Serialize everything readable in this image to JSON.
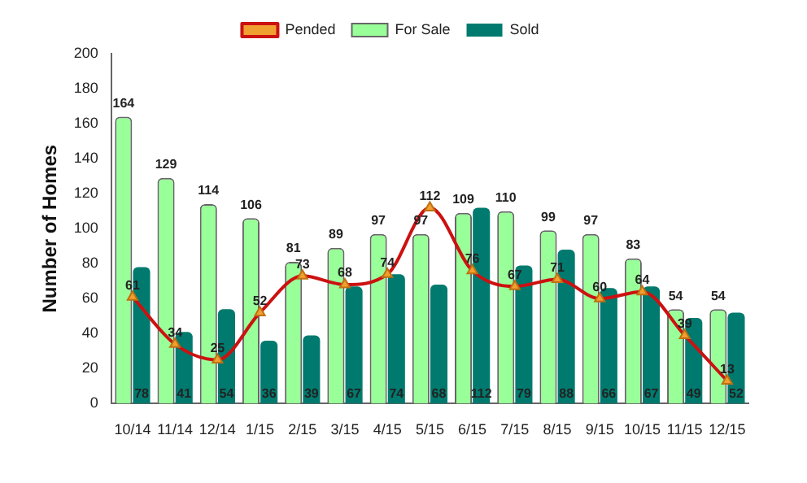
{
  "chart_data": {
    "type": "bar",
    "ylabel": "Number of Homes",
    "categories": [
      "10/14",
      "11/14",
      "12/14",
      "1/15",
      "2/15",
      "3/15",
      "4/15",
      "5/15",
      "6/15",
      "7/15",
      "8/15",
      "9/15",
      "10/15",
      "11/15",
      "12/15"
    ],
    "series": [
      {
        "name": "For Sale",
        "color": "#99ff99",
        "values": [
          164,
          129,
          114,
          106,
          81,
          89,
          97,
          97,
          109,
          110,
          99,
          97,
          83,
          54,
          54
        ]
      },
      {
        "name": "Sold",
        "color": "#007a6e",
        "values": [
          78,
          41,
          54,
          36,
          39,
          67,
          74,
          68,
          112,
          79,
          88,
          66,
          67,
          49,
          52
        ]
      },
      {
        "name": "Pended",
        "type": "line",
        "color": "#cc1111",
        "marker": "triangle",
        "values": [
          61,
          34,
          25,
          52,
          73,
          68,
          74,
          112,
          76,
          67,
          71,
          60,
          64,
          39,
          13
        ]
      }
    ],
    "ylim": [
      0,
      200
    ],
    "yticks": [
      0,
      20,
      40,
      60,
      80,
      100,
      120,
      140,
      160,
      180,
      200
    ],
    "grid": false,
    "legend": "top",
    "data_labels": true
  }
}
